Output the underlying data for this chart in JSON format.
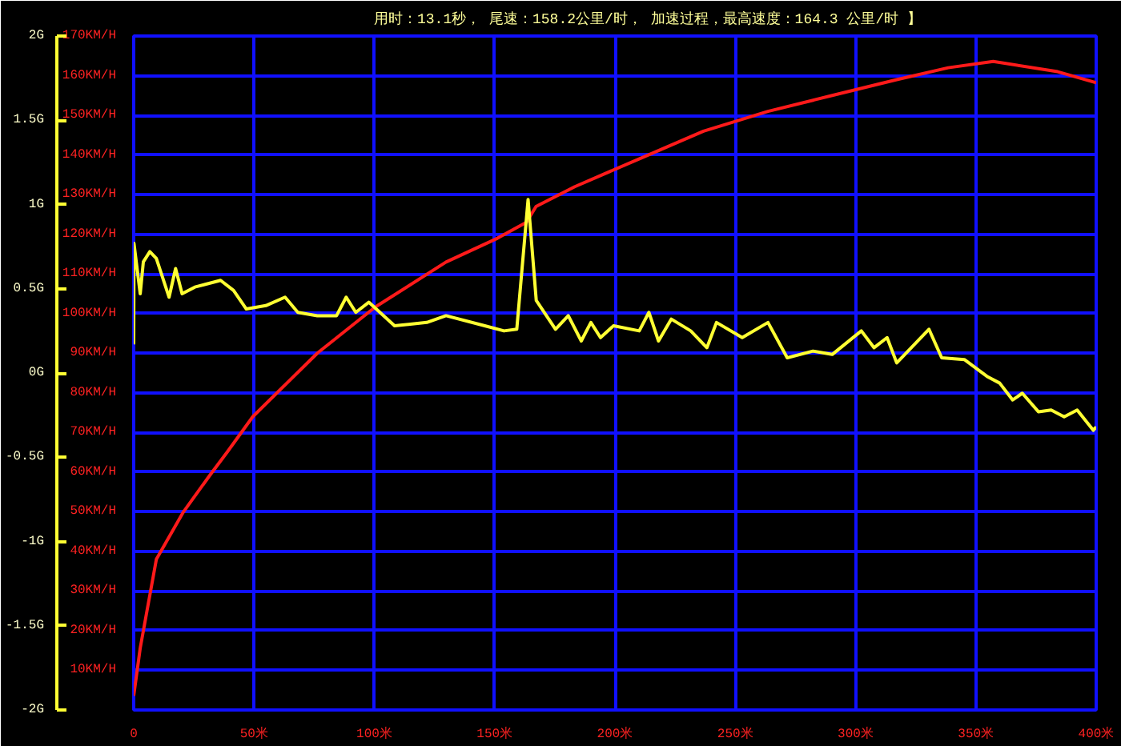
{
  "chart_data": {
    "type": "line",
    "title": "用时：13.1秒，  尾速：158.2公里/时，   加速过程，最高速度：164.3 公里/时 】",
    "xlim": [
      0,
      400
    ],
    "xticks": [
      0,
      {
        "value": 50,
        "label": "50米"
      },
      {
        "value": 100,
        "label": "100米"
      },
      {
        "value": 150,
        "label": "150米"
      },
      {
        "value": 200,
        "label": "200米"
      },
      {
        "value": 250,
        "label": "250米"
      },
      {
        "value": 300,
        "label": "300米"
      },
      {
        "value": 350,
        "label": "350米"
      },
      {
        "value": 400,
        "label": "400米"
      }
    ],
    "ylim": [
      0,
      170
    ],
    "yticks": [
      {
        "value": 0,
        "label": null
      },
      {
        "value": 10,
        "label": "10KM/H"
      },
      {
        "value": 20,
        "label": "20KM/H"
      },
      {
        "value": 30,
        "label": "30KM/H"
      },
      {
        "value": 40,
        "label": "40KM/H"
      },
      {
        "value": 50,
        "label": "50KM/H"
      },
      {
        "value": 60,
        "label": "60KM/H"
      },
      {
        "value": 70,
        "label": "70KM/H"
      },
      {
        "value": 80,
        "label": "80KM/H"
      },
      {
        "value": 90,
        "label": "90KM/H"
      },
      {
        "value": 100,
        "label": "100KM/H"
      },
      {
        "value": 110,
        "label": "110KM/H"
      },
      {
        "value": 120,
        "label": "120KM/H"
      },
      {
        "value": 130,
        "label": "130KM/H"
      },
      {
        "value": 140,
        "label": "140KM/H"
      },
      {
        "value": 150,
        "label": "150KM/H"
      },
      {
        "value": 160,
        "label": "160KM/H"
      },
      {
        "value": 170,
        "label": "170KM/H"
      }
    ],
    "y2lim": [
      -2,
      2
    ],
    "y2ticks": [
      {
        "value": -2,
        "label": "-2G"
      },
      {
        "value": -1.5,
        "label": "-1.5G"
      },
      {
        "value": -1,
        "label": "-1G"
      },
      {
        "value": -0.5,
        "label": "-0.5G"
      },
      {
        "value": 0,
        "label": "0G"
      },
      {
        "value": 0.5,
        "label": "0.5G"
      },
      {
        "value": 1,
        "label": "1G"
      },
      {
        "value": 1.5,
        "label": "1.5G"
      },
      {
        "value": 2,
        "label": "2G"
      }
    ],
    "grid": true,
    "series": [
      {
        "color": "#ff1a1a",
        "x": [
          0,
          2.7,
          9.4,
          20.7,
          31.4,
          38.8,
          49.5,
          76.3,
          100.3,
          129.8,
          151.2,
          163.2,
          167.2,
          183.3,
          210,
          236.8,
          263.6,
          290.3,
          317.1,
          338.5,
          357.2,
          384,
          400
        ],
        "values": [
          3.6,
          15.6,
          38,
          50,
          59,
          65,
          74,
          90,
          101.6,
          113,
          119,
          123,
          127,
          132,
          139,
          146,
          151,
          155,
          159,
          162,
          163.6,
          161,
          158.2
        ]
      },
      {
        "color": "#ffff33",
        "axis": "y2",
        "x": [
          0,
          0.1,
          2.7,
          4,
          6.7,
          9.4,
          14.7,
          17.4,
          20.1,
          25.4,
          36.1,
          41.5,
          46.8,
          54.9,
          62.9,
          68.2,
          76.3,
          84.3,
          88.3,
          92.3,
          97.7,
          108.4,
          121.8,
          129.8,
          145.9,
          153.9,
          159.2,
          163.9,
          167.3,
          175.3,
          180.6,
          186,
          190,
          194,
          199.4,
          210.1,
          214.1,
          218.1,
          223.4,
          231.5,
          238.2,
          242.2,
          252.9,
          263.6,
          271.6,
          282.3,
          290.3,
          302.4,
          307.7,
          313.1,
          317.1,
          330.5,
          335.8,
          345.2,
          354.6,
          359.9,
          365.3,
          369.3,
          376,
          381.3,
          386.7,
          392.1,
          398.8,
          400
        ],
        "values": [
          0.17,
          0.77,
          0.47,
          0.66,
          0.72,
          0.68,
          0.45,
          0.62,
          0.47,
          0.51,
          0.55,
          0.49,
          0.38,
          0.4,
          0.45,
          0.36,
          0.34,
          0.34,
          0.45,
          0.36,
          0.42,
          0.28,
          0.3,
          0.34,
          0.28,
          0.25,
          0.26,
          1.03,
          0.43,
          0.26,
          0.34,
          0.19,
          0.3,
          0.21,
          0.28,
          0.25,
          0.36,
          0.19,
          0.32,
          0.25,
          0.15,
          0.3,
          0.21,
          0.3,
          0.09,
          0.13,
          0.11,
          0.25,
          0.15,
          0.21,
          0.06,
          0.26,
          0.09,
          0.08,
          -0.02,
          -0.06,
          -0.16,
          -0.12,
          -0.23,
          -0.22,
          -0.26,
          -0.22,
          -0.34,
          -0.32
        ]
      }
    ]
  }
}
